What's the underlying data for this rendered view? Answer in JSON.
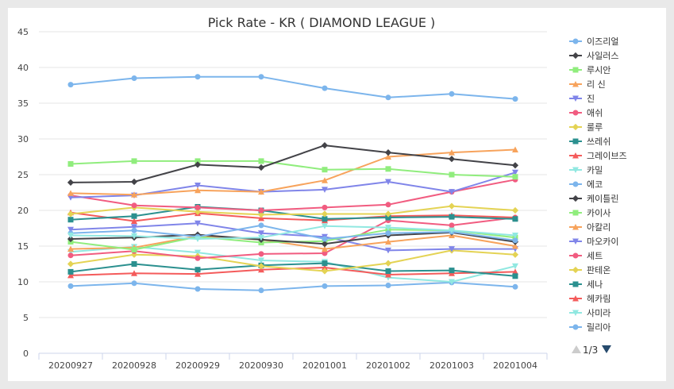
{
  "chart_data": {
    "type": "line",
    "title": "Pick Rate - KR ( DIAMOND LEAGUE )",
    "xlabel": "",
    "ylabel": "",
    "ylim": [
      0,
      45
    ],
    "yticks": [
      0,
      5,
      10,
      15,
      20,
      25,
      30,
      35,
      40,
      45
    ],
    "grid": "horizontal",
    "legend_position": "right",
    "x": [
      "20200927",
      "20200928",
      "20200929",
      "20200930",
      "20201001",
      "20201002",
      "20201003",
      "20201004"
    ],
    "series": [
      {
        "name": "이즈리얼",
        "color": "#7cb5ec",
        "marker": "circle",
        "values": [
          37.6,
          38.5,
          38.7,
          38.7,
          37.1,
          35.8,
          36.3,
          35.6
        ]
      },
      {
        "name": "사일러스",
        "color": "#434348",
        "marker": "diamond",
        "values": [
          23.9,
          24.0,
          26.4,
          26.0,
          29.1,
          28.1,
          27.2,
          26.3
        ]
      },
      {
        "name": "루시안",
        "color": "#90ed7d",
        "marker": "square",
        "values": [
          26.5,
          26.9,
          26.9,
          26.9,
          25.7,
          25.8,
          25.0,
          24.7
        ]
      },
      {
        "name": "리 신",
        "color": "#f7a35c",
        "marker": "triangle",
        "values": [
          22.4,
          22.2,
          22.8,
          22.6,
          24.2,
          27.5,
          28.1,
          28.5
        ]
      },
      {
        "name": "진",
        "color": "#8085e9",
        "marker": "triangle-down",
        "values": [
          21.8,
          22.1,
          23.5,
          22.6,
          22.9,
          24.0,
          22.6,
          25.3
        ]
      },
      {
        "name": "애쉬",
        "color": "#f15c80",
        "marker": "circle",
        "values": [
          22.1,
          20.7,
          20.4,
          20.0,
          20.4,
          20.8,
          22.6,
          24.3
        ]
      },
      {
        "name": "룰루",
        "color": "#e4d354",
        "marker": "diamond",
        "values": [
          19.5,
          20.4,
          19.8,
          19.4,
          19.5,
          19.5,
          20.6,
          20.0
        ]
      },
      {
        "name": "쓰레쉬",
        "color": "#2b908f",
        "marker": "square",
        "values": [
          18.7,
          19.2,
          20.5,
          20.0,
          18.8,
          19.0,
          19.1,
          18.8
        ]
      },
      {
        "name": "그레이브즈",
        "color": "#f45b5b",
        "marker": "triangle",
        "values": [
          19.7,
          18.5,
          19.6,
          18.9,
          18.6,
          19.2,
          19.3,
          19.0
        ]
      },
      {
        "name": "카밀",
        "color": "#91e8e1",
        "marker": "triangle-down",
        "values": [
          16.5,
          16.4,
          16.0,
          16.2,
          17.8,
          17.6,
          17.2,
          16.5
        ]
      },
      {
        "name": "에코",
        "color": "#7cb5ec",
        "marker": "circle",
        "values": [
          16.8,
          17.2,
          16.3,
          17.9,
          16.0,
          16.8,
          17.0,
          15.8
        ]
      },
      {
        "name": "케이틀린",
        "color": "#434348",
        "marker": "diamond",
        "values": [
          16.0,
          16.2,
          16.6,
          15.9,
          15.3,
          16.5,
          16.9,
          15.6
        ]
      },
      {
        "name": "카이사",
        "color": "#90ed7d",
        "marker": "square",
        "values": [
          15.6,
          14.5,
          16.3,
          15.5,
          15.7,
          17.3,
          17.2,
          16.2
        ]
      },
      {
        "name": "아칼리",
        "color": "#f7a35c",
        "marker": "triangle",
        "values": [
          14.6,
          14.8,
          16.4,
          15.9,
          14.6,
          15.6,
          16.5,
          15.0
        ]
      },
      {
        "name": "마오카이",
        "color": "#8085e9",
        "marker": "triangle-down",
        "values": [
          17.3,
          17.7,
          18.2,
          16.8,
          16.3,
          14.4,
          14.6,
          14.6
        ]
      },
      {
        "name": "세트",
        "color": "#f15c80",
        "marker": "circle",
        "values": [
          13.7,
          14.3,
          13.3,
          13.9,
          14.0,
          18.6,
          17.9,
          19.0
        ]
      },
      {
        "name": "판테온",
        "color": "#e4d354",
        "marker": "diamond",
        "values": [
          12.5,
          13.8,
          13.6,
          12.2,
          11.5,
          12.6,
          14.4,
          13.8
        ]
      },
      {
        "name": "세나",
        "color": "#2b908f",
        "marker": "square",
        "values": [
          11.4,
          12.5,
          11.7,
          12.3,
          12.6,
          11.5,
          11.6,
          10.8
        ]
      },
      {
        "name": "헤카림",
        "color": "#f45b5b",
        "marker": "triangle",
        "values": [
          10.9,
          11.2,
          11.1,
          11.7,
          12.0,
          11.0,
          11.2,
          11.4
        ]
      },
      {
        "name": "사미라",
        "color": "#91e8e1",
        "marker": "triangle-down",
        "values": [
          14.2,
          14.9,
          14.1,
          13.0,
          12.8,
          10.6,
          10.0,
          12.2
        ]
      },
      {
        "name": "릴리아",
        "color": "#7cb5ec",
        "marker": "circle",
        "values": [
          9.4,
          9.8,
          9.0,
          8.8,
          9.4,
          9.5,
          9.9,
          9.3
        ]
      }
    ]
  },
  "legend": {
    "page_label": "1/3",
    "prev_icon": "triangle-up-icon",
    "next_icon": "triangle-down-icon"
  }
}
